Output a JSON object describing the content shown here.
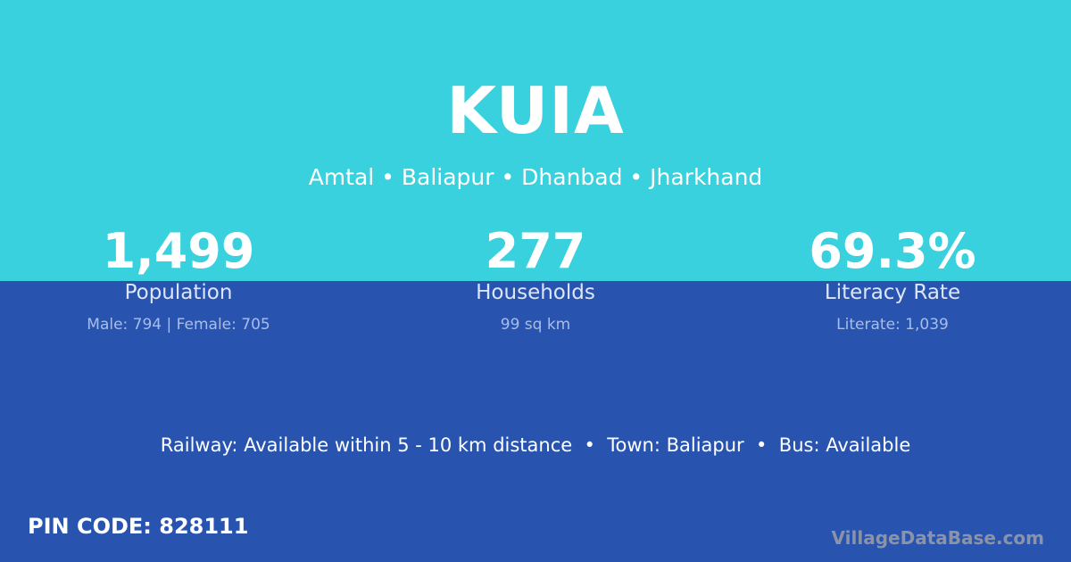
{
  "village": {
    "name": "KUIA",
    "location": "Amtal • Baliapur • Dhanbad • Jharkhand"
  },
  "stats": [
    {
      "value": "1,499",
      "label": "Population",
      "detail": "Male: 794 | Female: 705"
    },
    {
      "value": "277",
      "label": "Households",
      "detail": "99 sq km"
    },
    {
      "value": "69.3%",
      "label": "Literacy Rate",
      "detail": "Literate: 1,039"
    }
  ],
  "info": "Railway: Available within 5 - 10 km distance  •  Town: Baliapur  •  Bus: Available",
  "pin": "PIN CODE: 828111",
  "brand": "VillageDataBase.com",
  "colors": {
    "top": "#38d1dd",
    "bottom": "#2854b0"
  }
}
